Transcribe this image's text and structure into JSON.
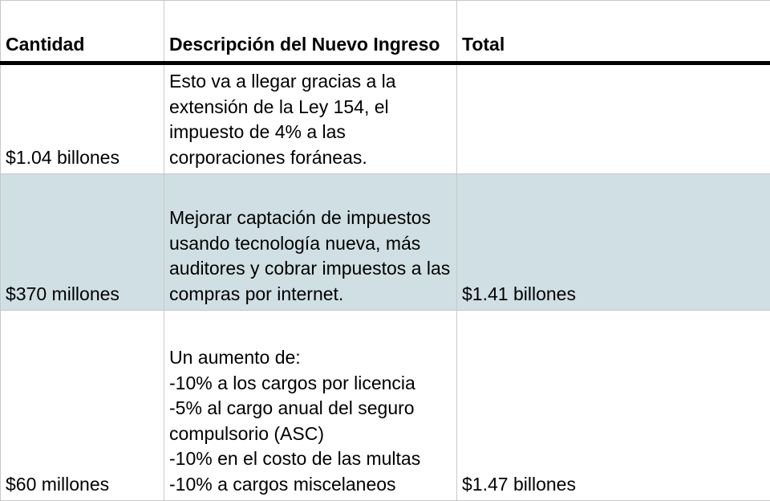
{
  "table": {
    "headers": [
      "Cantidad",
      "Descripción del Nuevo Ingreso",
      "Total"
    ],
    "rows": [
      {
        "cantidad": "$1.04 billones",
        "descripcion": "Esto va a llegar gracias a la extensión de la Ley 154, el impuesto de 4% a las corporaciones foráneas.",
        "total": ""
      },
      {
        "cantidad": "$370 millones",
        "descripcion": "Mejorar captación de impuestos usando tecnología nueva, más auditores y cobrar impuestos a las compras por internet.",
        "total": "$1.41 billones"
      },
      {
        "cantidad": "$60 millones",
        "descripcion": "Un aumento de:\n-10% a los cargos por licencia\n-5% al cargo anual del seguro compulsorio (ASC)\n-10% en el costo de las multas\n-10% a cargos miscelaneos",
        "total": "$1.47 billones"
      }
    ],
    "colors": {
      "header_rule": "#000000",
      "grid": "#c8c8c8",
      "shaded_row": "#d0dfe3"
    }
  }
}
